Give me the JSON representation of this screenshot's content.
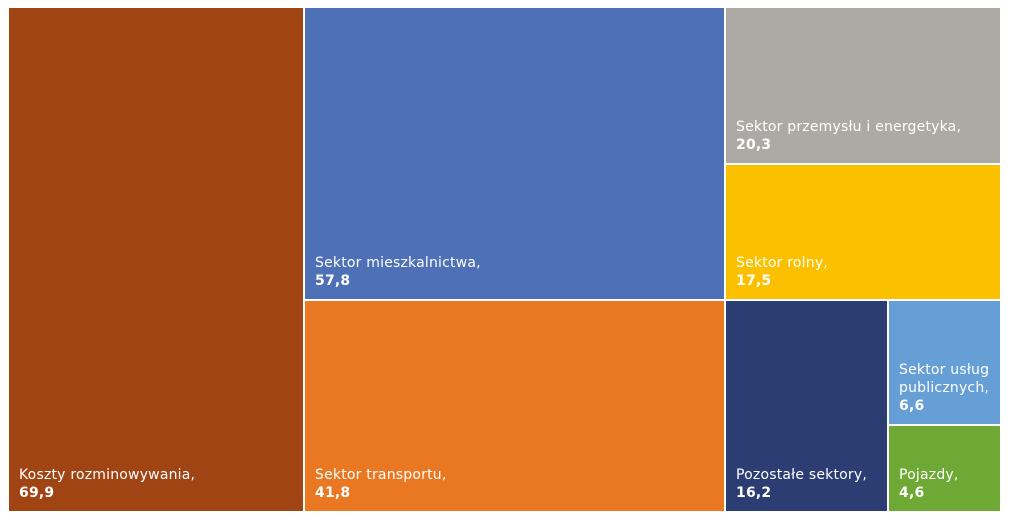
{
  "chart_data": {
    "type": "treemap",
    "items": [
      {
        "name": "Koszty rozminowywania,",
        "value_label": "69,9",
        "value": 69.9,
        "color": "#A04414"
      },
      {
        "name": "Sektor mieszkalnictwa,",
        "value_label": "57,8",
        "value": 57.8,
        "color": "#4E70B6"
      },
      {
        "name": "Sektor transportu,",
        "value_label": "41,8",
        "value": 41.8,
        "color": "#EA7721"
      },
      {
        "name": "Sektor przemysłu i energetyka,",
        "value_label": "20,3",
        "value": 20.3,
        "color": "#ADA9A5"
      },
      {
        "name": "Sektor rolny,",
        "value_label": "17,5",
        "value": 17.5,
        "color": "#FBC000"
      },
      {
        "name": "Pozostałe sektory,",
        "value_label": "16,2",
        "value": 16.2,
        "color": "#2B3D72"
      },
      {
        "name": "Sektor usług publicznych,",
        "value_label": "6,6",
        "value": 6.6,
        "color": "#659FD6"
      },
      {
        "name": "Pojazdy,",
        "value_label": "4,6",
        "value": 4.6,
        "color": "#6FA935"
      }
    ]
  }
}
